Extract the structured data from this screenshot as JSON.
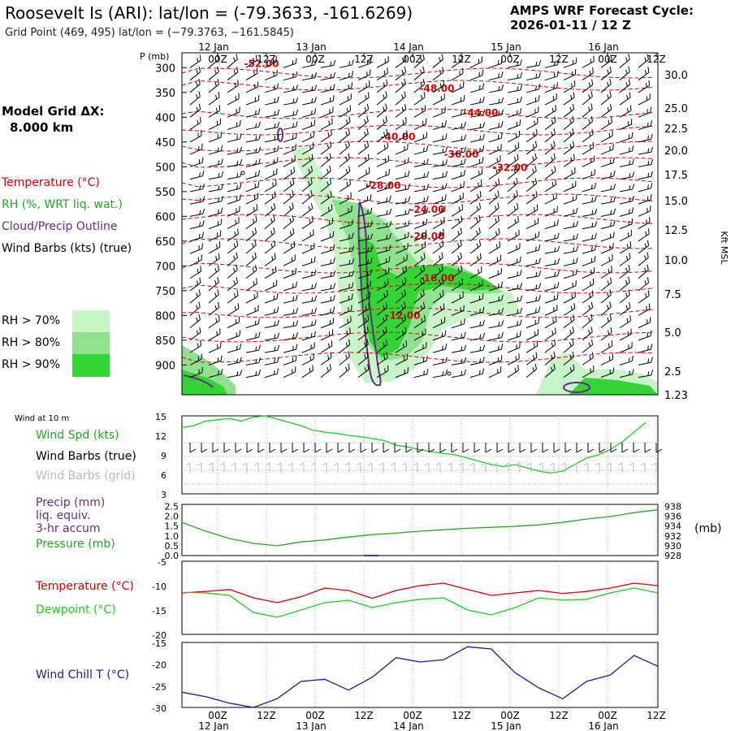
{
  "header": {
    "title": "Roosevelt Is (ARI):  lat/lon = (-79.3633, -161.6269)",
    "subtitle": "Grid Point (469, 495) lat/lon = (−79.3763, −161.5845)",
    "cycle_line1": "AMPS WRF Forecast Cycle:",
    "cycle_line2": "2026-01-11 / 12  Z"
  },
  "left_panel": {
    "model_grid": "Model Grid ΔX:",
    "model_grid_value": "8.000 km",
    "temperature_label": "Temperature (°C)",
    "rh_label": "RH (%, WRT liq. wat.)",
    "cloud_label": "Cloud/Precip Outline",
    "wind_label": "Wind Barbs (kts) (true)",
    "rh_legend": [
      "RH > 70%",
      "RH > 80%",
      "RH > 90%"
    ]
  },
  "colors": {
    "temperature": "#e00000",
    "rh70": "#c8f5c8",
    "rh80": "#8fe08f",
    "rh90": "#33d433",
    "cloud": "#6a2a8a",
    "wind_spd": "#22cc22",
    "pressure": "#22aa22",
    "dewpoint": "#22cc22",
    "wind_chill": "#1a1aa0",
    "grid_barbs": "#bbbbbb"
  },
  "chart_data": [
    {
      "type": "line",
      "name": "upper-air",
      "p_axis_title": "P (mb)",
      "height_axis_title": "Kft MSL",
      "x_ticks": [
        "00Z",
        "12Z",
        "00Z",
        "12Z",
        "00Z",
        "12Z",
        "00Z",
        "12Z",
        "00Z",
        "12Z"
      ],
      "date_labels_top": [
        "12 Jan",
        "13 Jan",
        "14 Jan",
        "15 Jan",
        "16 Jan"
      ],
      "p_ticks": [
        300,
        350,
        400,
        450,
        500,
        550,
        600,
        650,
        700,
        750,
        800,
        850,
        900
      ],
      "height_ticks": [
        "30.0",
        "25.0",
        "22.5",
        "20.0",
        "17.5",
        "15.0",
        "12.5",
        "10.0",
        "7.5",
        "5.0",
        "2.5",
        "1.23"
      ],
      "ylim_p": [
        960,
        270
      ],
      "temperature_isotherm_labels": [
        {
          "label": "-52.00",
          "x": 0.9,
          "p": 292
        },
        {
          "label": "-48.00",
          "x": 4.5,
          "p": 342
        },
        {
          "label": "-44.00",
          "x": 5.4,
          "p": 391
        },
        {
          "label": "-40.00",
          "x": 3.7,
          "p": 440
        },
        {
          "label": "-36.00",
          "x": 5.0,
          "p": 475
        },
        {
          "label": "-32.00",
          "x": 6.0,
          "p": 502
        },
        {
          "label": "-28.00",
          "x": 3.4,
          "p": 538
        },
        {
          "label": "-24.00",
          "x": 4.3,
          "p": 586
        },
        {
          "label": "-20.00",
          "x": 4.3,
          "p": 640
        },
        {
          "label": "-16.00",
          "x": 4.5,
          "p": 725
        },
        {
          "label": "-12.00",
          "x": 3.8,
          "p": 800
        }
      ]
    },
    {
      "type": "line",
      "name": "wind-10m",
      "panel_title": "Wind at 10 m",
      "series_label": "Wind Spd (kts)",
      "barbs_true_label": "Wind Barbs (true)",
      "barbs_grid_label": "Wind Barbs (grid)",
      "y_ticks": [
        3,
        6,
        9,
        12,
        15
      ],
      "ylim": [
        3,
        15
      ],
      "x": [
        0,
        0.5,
        1,
        1.5,
        2,
        2.5,
        3,
        3.5,
        4,
        4.5,
        5,
        5.5,
        6,
        6.5,
        7,
        7.5,
        8,
        8.5,
        9,
        9.5,
        10,
        10.5,
        11,
        11.5,
        12,
        12.5,
        13,
        13.5,
        14,
        14.5,
        15,
        15.5,
        16,
        16.5,
        17,
        17.5,
        18,
        18.5,
        19,
        19.5
      ],
      "values": [
        13.2,
        13.5,
        14.2,
        14.4,
        14.6,
        14.2,
        14.8,
        15.0,
        14.5,
        14.0,
        13.5,
        12.8,
        12.5,
        12.3,
        12.0,
        11.8,
        11.5,
        11.2,
        10.5,
        10.2,
        9.8,
        9.5,
        9.2,
        9.0,
        8.5,
        8.0,
        7.5,
        7.2,
        7.5,
        7.0,
        6.5,
        6.2,
        6.5,
        7.5,
        8.5,
        9.0,
        9.8,
        11.0,
        12.5,
        14.0
      ]
    },
    {
      "type": "line",
      "name": "precip-pressure",
      "precip_label_1": "Precip (mm)",
      "precip_label_2": "liq. equiv.",
      "precip_label_3": "3-hr accum",
      "pressure_label": "Pressure (mb)",
      "units_right": "(mb)",
      "precip_ticks": [
        "0.0",
        "0.5",
        "1.0",
        "1.5",
        "2.0",
        "2.5"
      ],
      "pressure_ticks": [
        "928",
        "930",
        "932",
        "934",
        "936",
        "938"
      ],
      "pressure_ylim": [
        928,
        938.5
      ],
      "x": [
        0,
        1,
        2,
        3,
        4,
        5,
        6,
        7,
        8,
        9,
        10,
        11,
        12,
        13,
        14,
        15,
        16,
        17,
        18,
        19,
        20
      ],
      "values": [
        934.8,
        933.0,
        931.5,
        930.5,
        930.0,
        930.8,
        931.2,
        931.8,
        932.3,
        932.6,
        933.0,
        933.3,
        933.6,
        933.8,
        934.0,
        934.3,
        934.8,
        935.5,
        936.0,
        936.8,
        937.4
      ]
    },
    {
      "type": "line",
      "name": "temperature-dewpoint",
      "temp_label": "Temperature (°C)",
      "dew_label": "Dewpoint (°C)",
      "y_ticks": [
        -20,
        -15,
        -10,
        -5
      ],
      "ylim": [
        -20,
        -5
      ],
      "x": [
        0,
        1,
        2,
        3,
        4,
        5,
        6,
        7,
        8,
        9,
        10,
        11,
        12,
        13,
        14,
        15,
        16,
        17,
        18,
        19,
        20
      ],
      "series": [
        {
          "name": "Temperature",
          "values": [
            -11.5,
            -11.2,
            -10.8,
            -12.5,
            -13.5,
            -12.3,
            -10.5,
            -11.0,
            -12.6,
            -11.0,
            -10.0,
            -9.5,
            -10.8,
            -12.0,
            -11.5,
            -11.0,
            -11.6,
            -11.2,
            -10.5,
            -9.5,
            -10.0
          ]
        },
        {
          "name": "Dewpoint",
          "values": [
            -11.4,
            -11.5,
            -12.0,
            -15.5,
            -16.5,
            -15.0,
            -13.5,
            -13.0,
            -14.5,
            -13.5,
            -12.8,
            -12.5,
            -15.0,
            -16.0,
            -14.5,
            -12.5,
            -13.0,
            -12.8,
            -11.5,
            -10.5,
            -11.5
          ]
        }
      ]
    },
    {
      "type": "line",
      "name": "wind-chill",
      "series_label": "Wind Chill T (°C)",
      "y_ticks": [
        -30,
        -25,
        -20,
        -15
      ],
      "ylim": [
        -30,
        -15
      ],
      "x_ticks": [
        "00Z",
        "12Z",
        "00Z",
        "12Z",
        "00Z",
        "12Z",
        "00Z",
        "12Z",
        "00Z",
        "12Z"
      ],
      "date_labels_bottom": [
        "12 Jan",
        "13 Jan",
        "14 Jan",
        "15 Jan",
        "16 Jan"
      ],
      "x": [
        0,
        1,
        2,
        3,
        4,
        5,
        6,
        7,
        8,
        9,
        10,
        11,
        12,
        13,
        14,
        15,
        16,
        17,
        18,
        19,
        20
      ],
      "values": [
        -26.5,
        -27.5,
        -29.0,
        -30.0,
        -28.0,
        -24.0,
        -23.5,
        -26.0,
        -23.0,
        -18.5,
        -19.5,
        -19.0,
        -16.0,
        -16.5,
        -22.0,
        -25.5,
        -28.0,
        -24.0,
        -22.5,
        -18.0,
        -20.5
      ]
    }
  ]
}
